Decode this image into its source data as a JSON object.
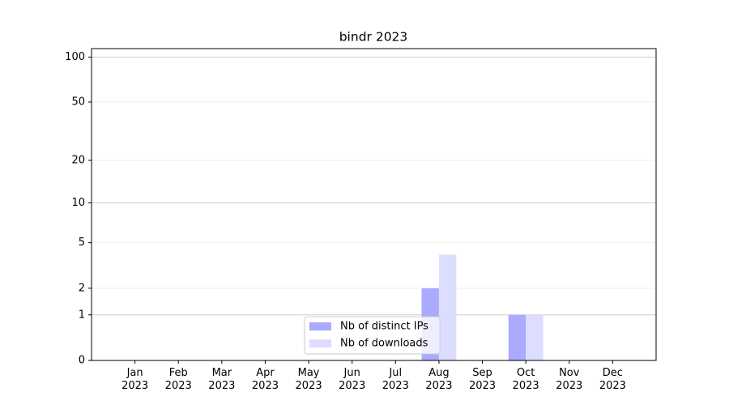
{
  "chart_data": {
    "type": "bar",
    "title": "bindr 2023",
    "categories": [
      "Jan\n2023",
      "Feb\n2023",
      "Mar\n2023",
      "Apr\n2023",
      "May\n2023",
      "Jun\n2023",
      "Jul\n2023",
      "Aug\n2023",
      "Sep\n2023",
      "Oct\n2023",
      "Nov\n2023",
      "Dec\n2023"
    ],
    "series": [
      {
        "name": "Nb of distinct IPs",
        "color": "#aaaaff",
        "values": [
          0,
          0,
          0,
          0,
          0,
          0,
          0,
          2,
          0,
          1,
          0,
          0
        ]
      },
      {
        "name": "Nb of downloads",
        "color": "#ddddff",
        "values": [
          0,
          0,
          0,
          0,
          0,
          0,
          0,
          4,
          0,
          1,
          0,
          0
        ]
      }
    ],
    "yscale": "symlog",
    "ylim": [
      0,
      114
    ],
    "yticks": [
      0,
      1,
      2,
      5,
      10,
      20,
      50,
      100
    ],
    "grid": true,
    "legend": "lower center"
  }
}
